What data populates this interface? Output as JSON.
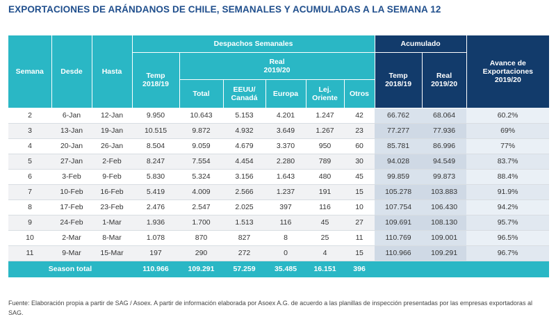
{
  "title": "EXPORTACIONES DE ARÁNDANOS DE CHILE, SEMANALES Y ACUMULADAS A LA SEMANA 12",
  "header": {
    "semana": "Semana",
    "desde": "Desde",
    "hasta": "Hasta",
    "despachos": "Despachos Semanales",
    "acumulado": "Acumulado",
    "avance": [
      "Avance de",
      "Exportaciones",
      "2019/20"
    ],
    "temp": [
      "Temp",
      "2018/19"
    ],
    "real_group": [
      "Real",
      "2019/20"
    ],
    "total": "Total",
    "eeuu": [
      "EEUU/",
      "Canadá"
    ],
    "europa": "Europa",
    "lej": [
      "Lej.",
      "Oriente"
    ],
    "otros": "Otros",
    "acc_temp": [
      "Temp",
      "2018/19"
    ],
    "acc_real": [
      "Real",
      "2019/20"
    ]
  },
  "rows": [
    {
      "semana": "2",
      "desde": "6-Jan",
      "hasta": "12-Jan",
      "temp": "9.950",
      "total": "10.643",
      "eeuu": "5.153",
      "europa": "4.201",
      "lej": "1.247",
      "otros": "42",
      "acc_temp": "66.762",
      "acc_real": "68.064",
      "avance": "60.2%"
    },
    {
      "semana": "3",
      "desde": "13-Jan",
      "hasta": "19-Jan",
      "temp": "10.515",
      "total": "9.872",
      "eeuu": "4.932",
      "europa": "3.649",
      "lej": "1.267",
      "otros": "23",
      "acc_temp": "77.277",
      "acc_real": "77.936",
      "avance": "69%"
    },
    {
      "semana": "4",
      "desde": "20-Jan",
      "hasta": "26-Jan",
      "temp": "8.504",
      "total": "9.059",
      "eeuu": "4.679",
      "europa": "3.370",
      "lej": "950",
      "otros": "60",
      "acc_temp": "85.781",
      "acc_real": "86.996",
      "avance": "77%"
    },
    {
      "semana": "5",
      "desde": "27-Jan",
      "hasta": "2-Feb",
      "temp": "8.247",
      "total": "7.554",
      "eeuu": "4.454",
      "europa": "2.280",
      "lej": "789",
      "otros": "30",
      "acc_temp": "94.028",
      "acc_real": "94.549",
      "avance": "83.7%"
    },
    {
      "semana": "6",
      "desde": "3-Feb",
      "hasta": "9-Feb",
      "temp": "5.830",
      "total": "5.324",
      "eeuu": "3.156",
      "europa": "1.643",
      "lej": "480",
      "otros": "45",
      "acc_temp": "99.859",
      "acc_real": "99.873",
      "avance": "88.4%"
    },
    {
      "semana": "7",
      "desde": "10-Feb",
      "hasta": "16-Feb",
      "temp": "5.419",
      "total": "4.009",
      "eeuu": "2.566",
      "europa": "1.237",
      "lej": "191",
      "otros": "15",
      "acc_temp": "105.278",
      "acc_real": "103.883",
      "avance": "91.9%"
    },
    {
      "semana": "8",
      "desde": "17-Feb",
      "hasta": "23-Feb",
      "temp": "2.476",
      "total": "2.547",
      "eeuu": "2.025",
      "europa": "397",
      "lej": "116",
      "otros": "10",
      "acc_temp": "107.754",
      "acc_real": "106.430",
      "avance": "94.2%"
    },
    {
      "semana": "9",
      "desde": "24-Feb",
      "hasta": "1-Mar",
      "temp": "1.936",
      "total": "1.700",
      "eeuu": "1.513",
      "europa": "116",
      "lej": "45",
      "otros": "27",
      "acc_temp": "109.691",
      "acc_real": "108.130",
      "avance": "95.7%"
    },
    {
      "semana": "10",
      "desde": "2-Mar",
      "hasta": "8-Mar",
      "temp": "1.078",
      "total": "870",
      "eeuu": "827",
      "europa": "8",
      "lej": "25",
      "otros": "11",
      "acc_temp": "110.769",
      "acc_real": "109.001",
      "avance": "96.5%"
    },
    {
      "semana": "11",
      "desde": "9-Mar",
      "hasta": "15-Mar",
      "temp": "197",
      "total": "290",
      "eeuu": "272",
      "europa": "0",
      "lej": "4",
      "otros": "15",
      "acc_temp": "110.966",
      "acc_real": "109.291",
      "avance": "96.7%"
    }
  ],
  "total_row": {
    "label": "Season total",
    "temp": "110.966",
    "total": "109.291",
    "eeuu": "57.259",
    "europa": "35.485",
    "lej": "16.151",
    "otros": "396"
  },
  "source": [
    "Fuente: Elaboración propia a partir de SAG / Asoex. A partir de información elaborada por Asoex A.G. de acuerdo a las planillas de inspección presentadas por las empresas exportadoras al",
    "SAG."
  ],
  "colors": {
    "teal": "#2ab7c5",
    "navy": "#123b6b",
    "title": "#1f4e8c"
  }
}
